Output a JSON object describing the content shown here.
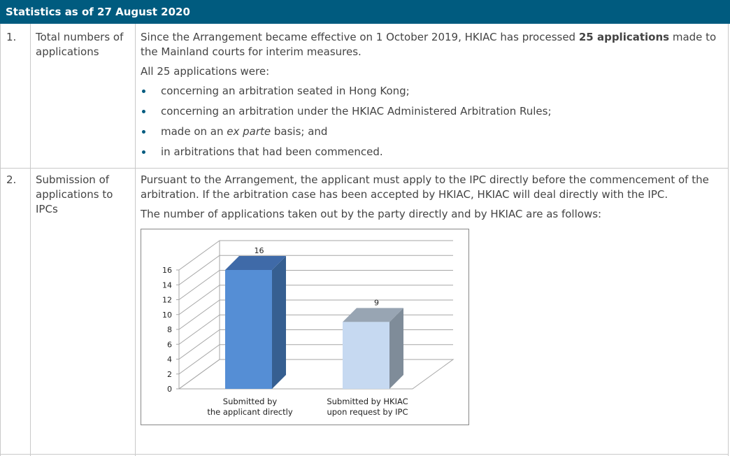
{
  "header": {
    "title": "Statistics as of 27 August 2020"
  },
  "rows": [
    {
      "number": "1.",
      "label": "Total numbers of applications",
      "intro_prefix": "Since the Arrangement became effective on 1 October 2019, HKIAC has processed ",
      "intro_bold": "25 applications",
      "intro_suffix": " made to the Mainland courts for interim measures.",
      "list_intro": "All 25 applications were:",
      "bullets": [
        "concerning an arbitration seated in Hong Kong;",
        "concerning an arbitration under the HKIAC Administered Arbitration Rules;",
        "in arbitrations that had been commenced."
      ],
      "bullet_exparte": {
        "prefix": "made on an ",
        "italic": "ex parte",
        "suffix": " basis; and"
      }
    },
    {
      "number": "2.",
      "label": "Submission of applications to IPCs",
      "para1": "Pursuant to the Arrangement, the applicant must apply to the IPC directly before the commencement of the arbitration. If the arbitration case has been accepted by HKIAC, HKIAC will deal directly with the IPC.",
      "para2": "The number of applications taken out by the party directly and by HKIAC are as follows:"
    }
  ],
  "chart_data": {
    "type": "bar",
    "style": "3d-column",
    "categories": [
      "Submitted by the applicant directly",
      "Submitted by HKIAC upon request by IPC"
    ],
    "category_lines": [
      [
        "Submitted by",
        "the applicant directly"
      ],
      [
        "Submitted by HKIAC",
        "upon request by  IPC"
      ]
    ],
    "values": [
      16,
      9
    ],
    "data_labels": [
      "16",
      "9"
    ],
    "y_ticks": [
      "0",
      "2",
      "4",
      "6",
      "8",
      "10",
      "12",
      "14",
      "16"
    ],
    "ylim": [
      0,
      16
    ],
    "grid": true,
    "colors": [
      "#558ed5",
      "#c6d9f1"
    ],
    "side_colors": [
      "#365f91",
      "#7f8c99"
    ],
    "top_colors": [
      "#3f6aa8",
      "#98a5b3"
    ]
  }
}
